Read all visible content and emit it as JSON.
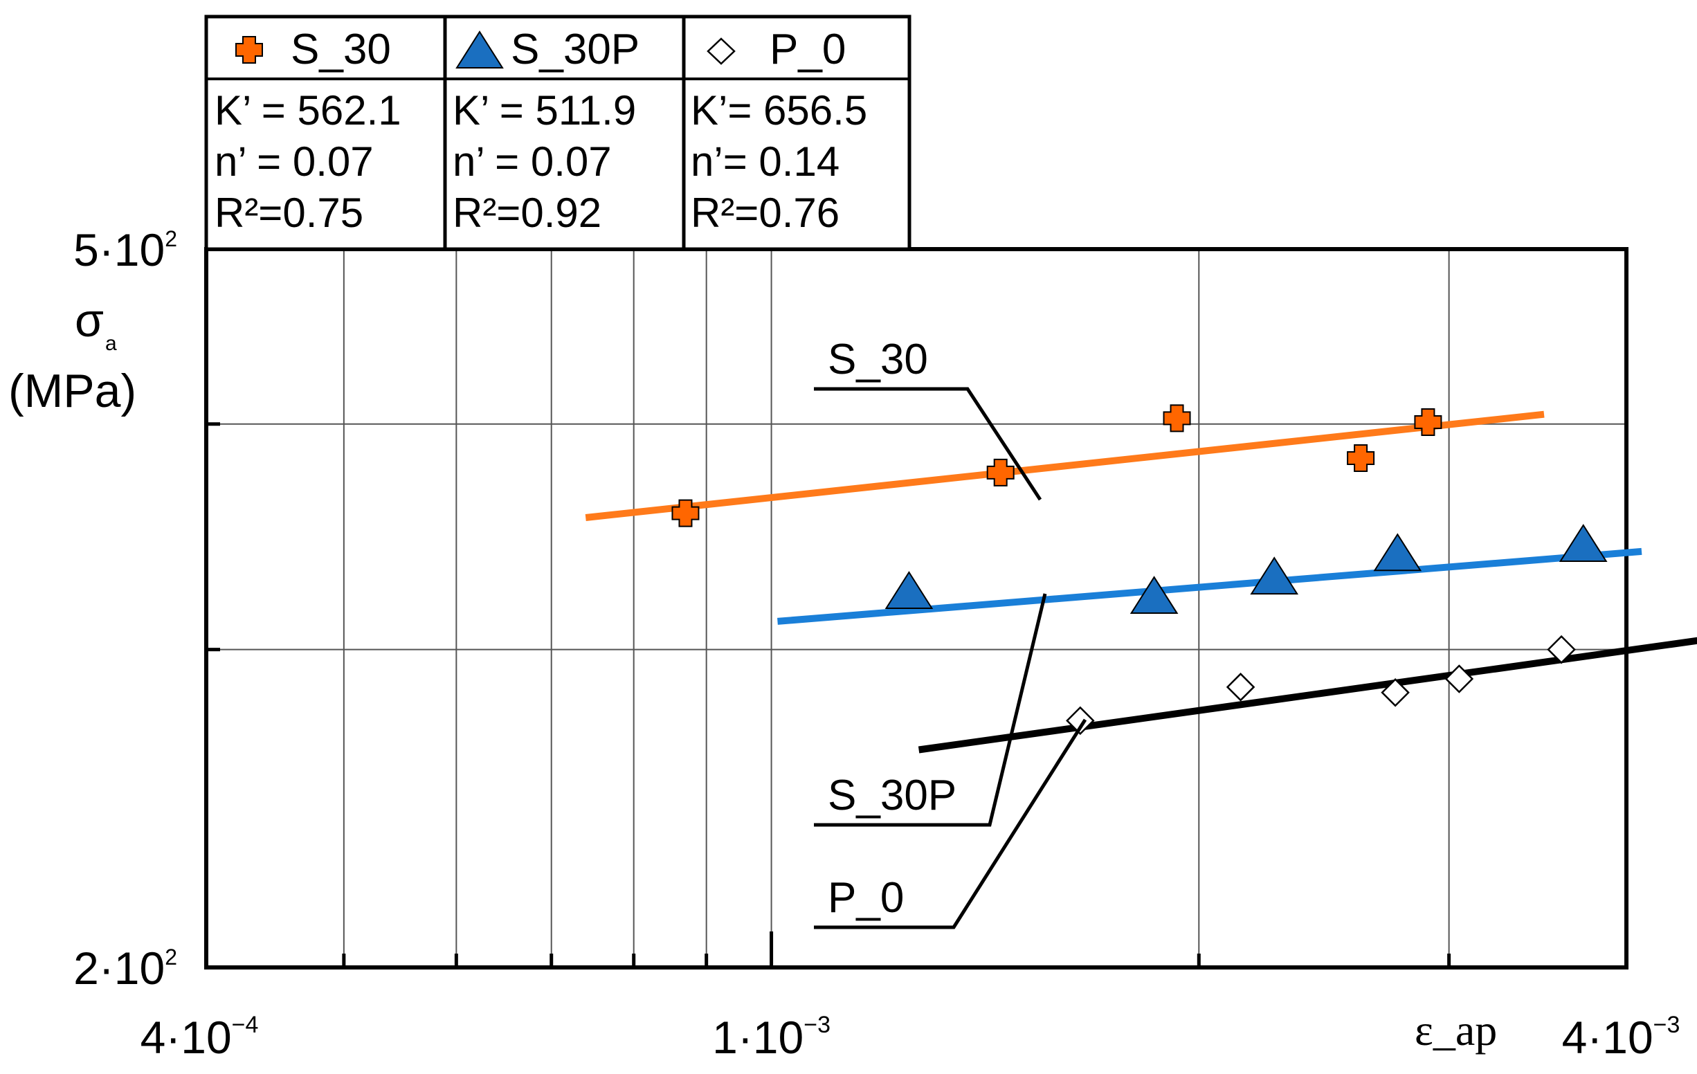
{
  "chart_data": {
    "type": "scatter",
    "x_scale": "log",
    "y_scale": "log",
    "xlim": [
      0.0004,
      0.004
    ],
    "ylim": [
      200,
      500
    ],
    "xlabel": "ε_ap",
    "ylabel_symbol": "σ",
    "ylabel_sub": "a",
    "ylabel_unit": "(MPa)",
    "grid": true,
    "x_tick_labels": [
      {
        "value": 0.0004,
        "mant": "4·10",
        "exp": "−4"
      },
      {
        "value": 0.001,
        "mant": "1·10",
        "exp": "−3"
      },
      {
        "value": 0.004,
        "mant": "4·10",
        "exp": "−3"
      }
    ],
    "y_tick_labels": [
      {
        "value": 500,
        "mant": "5·10",
        "exp": "2"
      },
      {
        "value": 200,
        "mant": "2·10",
        "exp": "2"
      }
    ],
    "x_gridlines": [
      0.0005,
      0.0006,
      0.0007,
      0.0008,
      0.0009,
      0.001,
      0.002,
      0.003
    ],
    "y_gridlines": [
      300,
      400
    ],
    "series": [
      {
        "name": "S_30",
        "marker": "plus",
        "color": "#ff6600",
        "line_color": "#ff7a1a",
        "K": "K’ = 562.1",
        "n": "n’ = 0.07",
        "R2": "R²=0.75",
        "points": [
          [
            0.00087,
            357
          ],
          [
            0.00145,
            376
          ],
          [
            0.00193,
            403
          ],
          [
            0.0026,
            383
          ],
          [
            0.0029,
            401
          ]
        ],
        "fit": {
          "x": [
            0.00074,
            0.0035
          ],
          "y": [
            355,
            405
          ]
        }
      },
      {
        "name": "S_30P",
        "marker": "triangle",
        "color": "#1a6fc0",
        "line_color": "#1a7fd8",
        "K": "K’ = 511.9",
        "n": "n’ = 0.07",
        "R2": "R²=0.92",
        "points": [
          [
            0.00125,
            323
          ],
          [
            0.00186,
            321
          ],
          [
            0.00226,
            329
          ],
          [
            0.00276,
            339
          ],
          [
            0.00373,
            343
          ]
        ],
        "fit": {
          "x": [
            0.00101,
            0.0041
          ],
          "y": [
            311,
            340
          ]
        }
      },
      {
        "name": "P_0",
        "marker": "diamond",
        "color": "#ffffff",
        "line_color": "#000000",
        "K": "K’= 656.5",
        "n": "n’= 0.14",
        "R2": "R²=0.76",
        "points": [
          [
            0.00165,
            274
          ],
          [
            0.00214,
            286
          ],
          [
            0.00275,
            284
          ],
          [
            0.00305,
            289
          ],
          [
            0.0036,
            300
          ]
        ],
        "fit": {
          "x": [
            0.00127,
            0.0047
          ],
          "y": [
            264,
            305
          ]
        }
      }
    ],
    "callouts": [
      {
        "label": "S_30",
        "series": "S_30"
      },
      {
        "label": "S_30P",
        "series": "S_30P"
      },
      {
        "label": "P_0",
        "series": "P_0"
      }
    ]
  }
}
